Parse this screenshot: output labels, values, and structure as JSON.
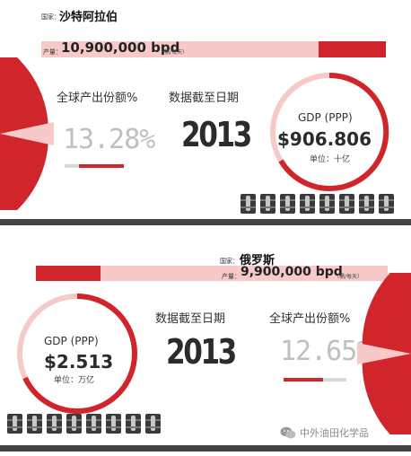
{
  "colors": {
    "primary_red": "#d0252b",
    "light_pink": "#f7c9c9",
    "mid_pink": "#ec8f8f",
    "dark_bar": "#444444",
    "barrel_dark": "#3a3a3a",
    "grey_text": "#bfbfbf"
  },
  "saudi": {
    "country_label": "国家：",
    "country": "沙特阿拉伯",
    "output_label": "产量：",
    "output_value": "10,900,000 bpd",
    "output_unit": "（桶/每天）",
    "share_label": "全球产出份额%",
    "share_value": "13.28%",
    "share_fraction": 0.1328,
    "date_label": "数据截至日期",
    "year": "2013",
    "gdp_label": "GDP (PPP)",
    "gdp_value": "$906.806",
    "gdp_unit": "单位：十亿"
  },
  "russia": {
    "country_label": "国家：",
    "country": "俄罗斯",
    "output_label": "产量：",
    "output_value": "9,900,000 bpd",
    "output_unit": "（桶/每天）",
    "gdp_label": "GDP (PPP)",
    "gdp_value": "$2.513",
    "gdp_unit": "单位：万亿",
    "date_label": "数据截至日期",
    "year": "2013",
    "share_label": "全球产出份额%",
    "share_value": "12.65%",
    "share_fraction": 0.1265
  },
  "watermark": {
    "icon": "wechat-icon",
    "text": "中外油田化学品"
  }
}
